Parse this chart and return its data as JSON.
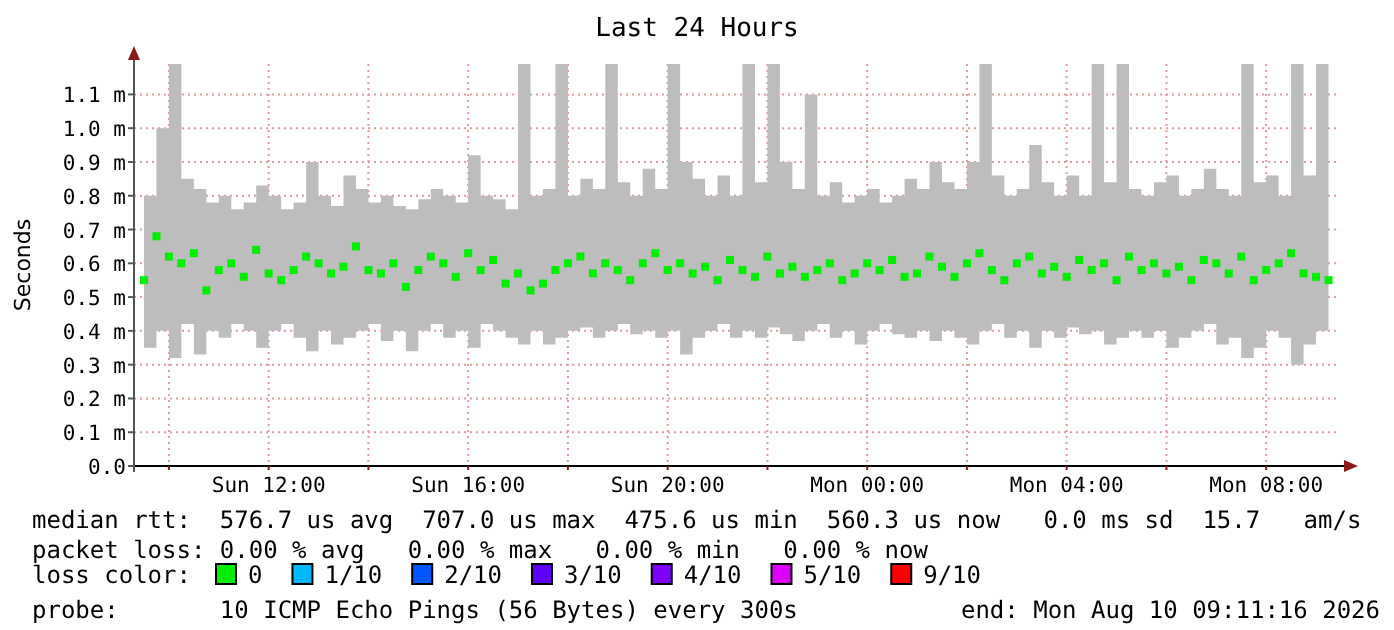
{
  "chart_data": {
    "type": "scatter",
    "title": "Last 24 Hours",
    "ylabel": "Seconds",
    "legend_title": "loss color:",
    "legend": "bottom",
    "grid": true,
    "marker": "square",
    "xlim": [
      "2026-08-09T09:18",
      "2026-08-10T09:24"
    ],
    "xticks": [
      {
        "value": "2026-08-09T10:00",
        "label": null
      },
      {
        "value": "2026-08-09T12:00",
        "label": "Sun 12:00"
      },
      {
        "value": "2026-08-09T14:00",
        "label": null
      },
      {
        "value": "2026-08-09T16:00",
        "label": "Sun 16:00"
      },
      {
        "value": "2026-08-09T18:00",
        "label": null
      },
      {
        "value": "2026-08-09T20:00",
        "label": "Sun 20:00"
      },
      {
        "value": "2026-08-09T22:00",
        "label": null
      },
      {
        "value": "2026-08-10T00:00",
        "label": "Mon 00:00"
      },
      {
        "value": "2026-08-10T02:00",
        "label": null
      },
      {
        "value": "2026-08-10T04:00",
        "label": "Mon 04:00"
      },
      {
        "value": "2026-08-10T06:00",
        "label": null
      },
      {
        "value": "2026-08-10T08:00",
        "label": "Mon 08:00"
      }
    ],
    "ylim": [
      0,
      1.19
    ],
    "yticks": [
      {
        "value": 0,
        "label": "0.0"
      },
      {
        "value": 0.1,
        "label": "0.1 m"
      },
      {
        "value": 0.2,
        "label": "0.2 m"
      },
      {
        "value": 0.3,
        "label": "0.3 m"
      },
      {
        "value": 0.4,
        "label": "0.4 m"
      },
      {
        "value": 0.5,
        "label": "0.5 m"
      },
      {
        "value": 0.6,
        "label": "0.6 m"
      },
      {
        "value": 0.7,
        "label": "0.7 m"
      },
      {
        "value": 0.8,
        "label": "0.8 m"
      },
      {
        "value": 0.9,
        "label": "0.9 m"
      },
      {
        "value": 1.0,
        "label": "1.0 m"
      },
      {
        "value": 1.1,
        "label": "1.1 m"
      }
    ],
    "series": [
      {
        "name": "0",
        "color": "#00ee00",
        "x": [
          "2026-08-09T09:30",
          "2026-08-09T09:45",
          "2026-08-09T10:00",
          "2026-08-09T10:15",
          "2026-08-09T10:30",
          "2026-08-09T10:45",
          "2026-08-09T11:00",
          "2026-08-09T11:15",
          "2026-08-09T11:30",
          "2026-08-09T11:45",
          "2026-08-09T12:00",
          "2026-08-09T12:15",
          "2026-08-09T12:30",
          "2026-08-09T12:45",
          "2026-08-09T13:00",
          "2026-08-09T13:15",
          "2026-08-09T13:30",
          "2026-08-09T13:45",
          "2026-08-09T14:00",
          "2026-08-09T14:15",
          "2026-08-09T14:30",
          "2026-08-09T14:45",
          "2026-08-09T15:00",
          "2026-08-09T15:15",
          "2026-08-09T15:30",
          "2026-08-09T15:45",
          "2026-08-09T16:00",
          "2026-08-09T16:15",
          "2026-08-09T16:30",
          "2026-08-09T16:45",
          "2026-08-09T17:00",
          "2026-08-09T17:15",
          "2026-08-09T17:30",
          "2026-08-09T17:45",
          "2026-08-09T18:00",
          "2026-08-09T18:15",
          "2026-08-09T18:30",
          "2026-08-09T18:45",
          "2026-08-09T19:00",
          "2026-08-09T19:15",
          "2026-08-09T19:30",
          "2026-08-09T19:45",
          "2026-08-09T20:00",
          "2026-08-09T20:15",
          "2026-08-09T20:30",
          "2026-08-09T20:45",
          "2026-08-09T21:00",
          "2026-08-09T21:15",
          "2026-08-09T21:30",
          "2026-08-09T21:45",
          "2026-08-09T22:00",
          "2026-08-09T22:15",
          "2026-08-09T22:30",
          "2026-08-09T22:45",
          "2026-08-09T23:00",
          "2026-08-09T23:15",
          "2026-08-09T23:30",
          "2026-08-09T23:45",
          "2026-08-10T00:00",
          "2026-08-10T00:15",
          "2026-08-10T00:30",
          "2026-08-10T00:45",
          "2026-08-10T01:00",
          "2026-08-10T01:15",
          "2026-08-10T01:30",
          "2026-08-10T01:45",
          "2026-08-10T02:00",
          "2026-08-10T02:15",
          "2026-08-10T02:30",
          "2026-08-10T02:45",
          "2026-08-10T03:00",
          "2026-08-10T03:15",
          "2026-08-10T03:30",
          "2026-08-10T03:45",
          "2026-08-10T04:00",
          "2026-08-10T04:15",
          "2026-08-10T04:30",
          "2026-08-10T04:45",
          "2026-08-10T05:00",
          "2026-08-10T05:15",
          "2026-08-10T05:30",
          "2026-08-10T05:45",
          "2026-08-10T06:00",
          "2026-08-10T06:15",
          "2026-08-10T06:30",
          "2026-08-10T06:45",
          "2026-08-10T07:00",
          "2026-08-10T07:15",
          "2026-08-10T07:30",
          "2026-08-10T07:45",
          "2026-08-10T08:00",
          "2026-08-10T08:15",
          "2026-08-10T08:30",
          "2026-08-10T08:45",
          "2026-08-10T09:00",
          "2026-08-10T09:15"
        ],
        "values": [
          0.55,
          0.68,
          0.62,
          0.6,
          0.63,
          0.52,
          0.58,
          0.6,
          0.56,
          0.64,
          0.57,
          0.55,
          0.58,
          0.62,
          0.6,
          0.57,
          0.59,
          0.65,
          0.58,
          0.57,
          0.6,
          0.53,
          0.58,
          0.62,
          0.6,
          0.56,
          0.63,
          0.58,
          0.61,
          0.54,
          0.57,
          0.52,
          0.54,
          0.58,
          0.6,
          0.62,
          0.57,
          0.6,
          0.58,
          0.55,
          0.6,
          0.63,
          0.58,
          0.6,
          0.57,
          0.59,
          0.55,
          0.61,
          0.58,
          0.56,
          0.62,
          0.57,
          0.59,
          0.56,
          0.58,
          0.6,
          0.55,
          0.57,
          0.6,
          0.58,
          0.61,
          0.56,
          0.57,
          0.62,
          0.59,
          0.56,
          0.6,
          0.63,
          0.58,
          0.55,
          0.6,
          0.62,
          0.57,
          0.59,
          0.56,
          0.61,
          0.58,
          0.6,
          0.55,
          0.62,
          0.58,
          0.6,
          0.57,
          0.59,
          0.55,
          0.61,
          0.6,
          0.57,
          0.62,
          0.55,
          0.58,
          0.6,
          0.63,
          0.57,
          0.56,
          0.55
        ],
        "upper": [
          0.8,
          1.0,
          1.19,
          0.85,
          0.82,
          0.78,
          0.8,
          0.76,
          0.78,
          0.83,
          0.8,
          0.76,
          0.78,
          0.9,
          0.8,
          0.77,
          0.86,
          0.82,
          0.78,
          0.8,
          0.77,
          0.76,
          0.79,
          0.82,
          0.8,
          0.78,
          0.92,
          0.8,
          0.79,
          0.76,
          1.19,
          0.8,
          0.82,
          1.19,
          0.8,
          0.85,
          0.82,
          1.19,
          0.84,
          0.8,
          0.88,
          0.82,
          1.19,
          0.9,
          0.85,
          0.8,
          0.86,
          0.8,
          1.19,
          0.84,
          1.19,
          0.9,
          0.82,
          1.1,
          0.8,
          0.84,
          0.78,
          0.8,
          0.82,
          0.78,
          0.8,
          0.85,
          0.82,
          0.9,
          0.84,
          0.82,
          0.9,
          1.19,
          0.86,
          0.8,
          0.82,
          0.95,
          0.84,
          0.8,
          0.86,
          0.8,
          1.19,
          0.84,
          1.19,
          0.82,
          0.8,
          0.84,
          0.86,
          0.8,
          0.82,
          0.88,
          0.82,
          0.8,
          1.19,
          0.84,
          0.86,
          0.8,
          1.19,
          0.86,
          1.19,
          0.8
        ],
        "lower": [
          0.35,
          0.4,
          0.32,
          0.42,
          0.33,
          0.4,
          0.38,
          0.42,
          0.4,
          0.35,
          0.4,
          0.42,
          0.38,
          0.34,
          0.4,
          0.36,
          0.38,
          0.4,
          0.42,
          0.37,
          0.4,
          0.34,
          0.4,
          0.42,
          0.38,
          0.4,
          0.35,
          0.42,
          0.4,
          0.38,
          0.36,
          0.4,
          0.36,
          0.38,
          0.4,
          0.41,
          0.38,
          0.4,
          0.42,
          0.39,
          0.4,
          0.38,
          0.4,
          0.33,
          0.38,
          0.4,
          0.42,
          0.38,
          0.4,
          0.38,
          0.41,
          0.39,
          0.37,
          0.4,
          0.42,
          0.38,
          0.4,
          0.36,
          0.4,
          0.42,
          0.39,
          0.38,
          0.4,
          0.37,
          0.4,
          0.38,
          0.36,
          0.4,
          0.42,
          0.38,
          0.4,
          0.35,
          0.4,
          0.38,
          0.41,
          0.39,
          0.4,
          0.36,
          0.38,
          0.4,
          0.38,
          0.4,
          0.35,
          0.38,
          0.4,
          0.42,
          0.36,
          0.38,
          0.32,
          0.35,
          0.4,
          0.38,
          0.3,
          0.36,
          0.4,
          0.38
        ]
      },
      {
        "name": "1/10",
        "color": "#00b8ff"
      },
      {
        "name": "2/10",
        "color": "#0059ff"
      },
      {
        "name": "3/10",
        "color": "#5e00ff"
      },
      {
        "name": "4/10",
        "color": "#7e00ff"
      },
      {
        "name": "5/10",
        "color": "#dd00ff"
      },
      {
        "name": "9/10",
        "color": "#ff0000"
      }
    ],
    "annotations": [
      "median rtt:  576.7 us avg  707.0 us max  475.6 us min  560.3 us now   0.0 ms sd  15.7   am/s",
      "packet loss: 0.00 % avg   0.00 % max   0.00 % min   0.00 % now",
      "probe:       10 ICMP Echo Pings (56 Bytes) every 300s",
      "end: Mon Aug 10 09:11:16 2026"
    ]
  }
}
